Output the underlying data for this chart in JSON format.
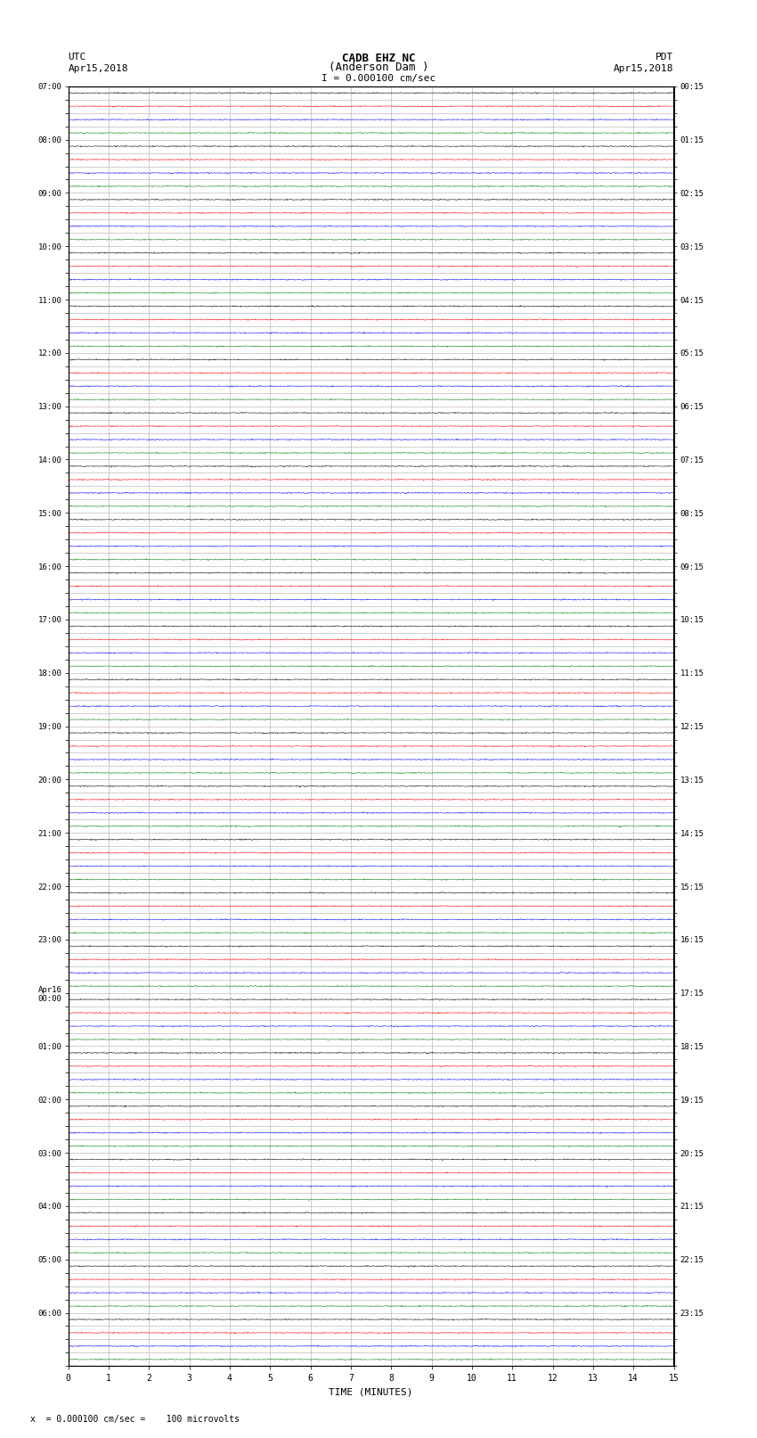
{
  "title_line1": "CADB EHZ NC",
  "title_line2": "(Anderson Dam )",
  "scale_label": "I = 0.000100 cm/sec",
  "left_label_top": "UTC",
  "left_label_date": "Apr15,2018",
  "right_label_top": "PDT",
  "right_label_date": "Apr15,2018",
  "xlabel": "TIME (MINUTES)",
  "footnote": "x  = 0.000100 cm/sec =    100 microvolts",
  "left_times": [
    "07:00",
    "",
    "",
    "",
    "08:00",
    "",
    "",
    "",
    "09:00",
    "",
    "",
    "",
    "10:00",
    "",
    "",
    "",
    "11:00",
    "",
    "",
    "",
    "12:00",
    "",
    "",
    "",
    "13:00",
    "",
    "",
    "",
    "14:00",
    "",
    "",
    "",
    "15:00",
    "",
    "",
    "",
    "16:00",
    "",
    "",
    "",
    "17:00",
    "",
    "",
    "",
    "18:00",
    "",
    "",
    "",
    "19:00",
    "",
    "",
    "",
    "20:00",
    "",
    "",
    "",
    "21:00",
    "",
    "",
    "",
    "22:00",
    "",
    "",
    "",
    "23:00",
    "",
    "",
    "",
    "Apr16\n00:00",
    "",
    "",
    "",
    "01:00",
    "",
    "",
    "",
    "02:00",
    "",
    "",
    "",
    "03:00",
    "",
    "",
    "",
    "04:00",
    "",
    "",
    "",
    "05:00",
    "",
    "",
    "",
    "06:00",
    "",
    "",
    ""
  ],
  "right_times": [
    "00:15",
    "",
    "",
    "",
    "01:15",
    "",
    "",
    "",
    "02:15",
    "",
    "",
    "",
    "03:15",
    "",
    "",
    "",
    "04:15",
    "",
    "",
    "",
    "05:15",
    "",
    "",
    "",
    "06:15",
    "",
    "",
    "",
    "07:15",
    "",
    "",
    "",
    "08:15",
    "",
    "",
    "",
    "09:15",
    "",
    "",
    "",
    "10:15",
    "",
    "",
    "",
    "11:15",
    "",
    "",
    "",
    "12:15",
    "",
    "",
    "",
    "13:15",
    "",
    "",
    "",
    "14:15",
    "",
    "",
    "",
    "15:15",
    "",
    "",
    "",
    "16:15",
    "",
    "",
    "",
    "17:15",
    "",
    "",
    "",
    "18:15",
    "",
    "",
    "",
    "19:15",
    "",
    "",
    "",
    "20:15",
    "",
    "",
    "",
    "21:15",
    "",
    "",
    "",
    "22:15",
    "",
    "",
    "",
    "23:15",
    "",
    "",
    ""
  ],
  "n_rows": 96,
  "n_minutes": 15,
  "background_color": "#ffffff",
  "grid_color": "#888888",
  "trace_colors": [
    "black",
    "red",
    "blue",
    "green"
  ],
  "noise_amplitude": 0.06,
  "trace_linewidth": 0.35,
  "grid_linewidth": 0.4,
  "xlim": [
    0,
    15
  ],
  "xticks": [
    0,
    1,
    2,
    3,
    4,
    5,
    6,
    7,
    8,
    9,
    10,
    11,
    12,
    13,
    14,
    15
  ]
}
